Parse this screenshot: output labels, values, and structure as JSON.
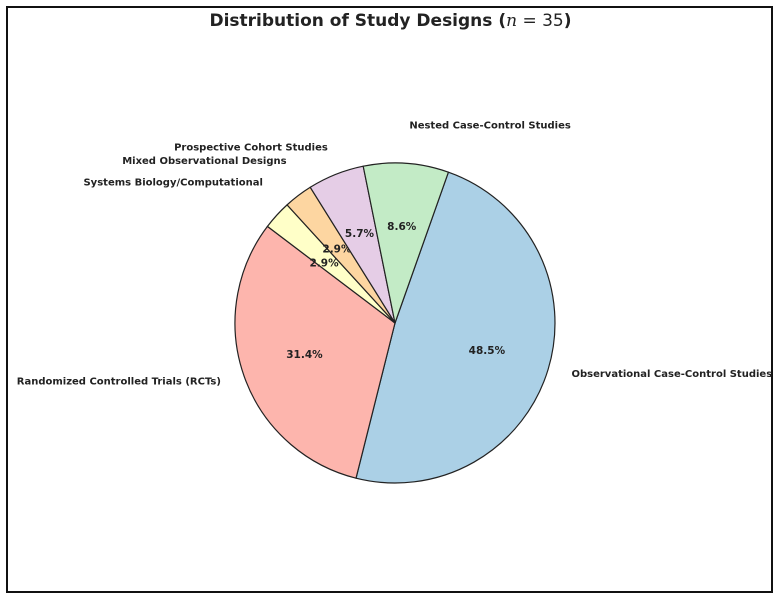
{
  "chart_data": {
    "type": "pie",
    "title": {
      "text": "Distribution of Study Designs",
      "open": "(",
      "var": "n",
      "rest": " = 35",
      "close": ")"
    },
    "start_angle_deg": 70.5,
    "direction": "clockwise",
    "slices": [
      {
        "label": "Observational Case-Control Studies",
        "value": 48.5,
        "pct_label": "48.5%",
        "color": "#abd0e6"
      },
      {
        "label": "Randomized Controlled Trials (RCTs)",
        "value": 31.4,
        "pct_label": "31.4%",
        "color": "#fdb5ad"
      },
      {
        "label": "Systems Biology/Computational",
        "value": 2.9,
        "pct_label": "2.9%",
        "color": "#ffffc8"
      },
      {
        "label": "Mixed Observational Designs",
        "value": 2.9,
        "pct_label": "2.9%",
        "color": "#fdd6a1"
      },
      {
        "label": "Prospective Cohort Studies",
        "value": 5.7,
        "pct_label": "5.7%",
        "color": "#e5cde6"
      },
      {
        "label": "Nested Case-Control Studies",
        "value": 8.6,
        "pct_label": "8.6%",
        "color": "#c3ebc6"
      }
    ],
    "edge_color": "#222222",
    "legend": "none"
  }
}
